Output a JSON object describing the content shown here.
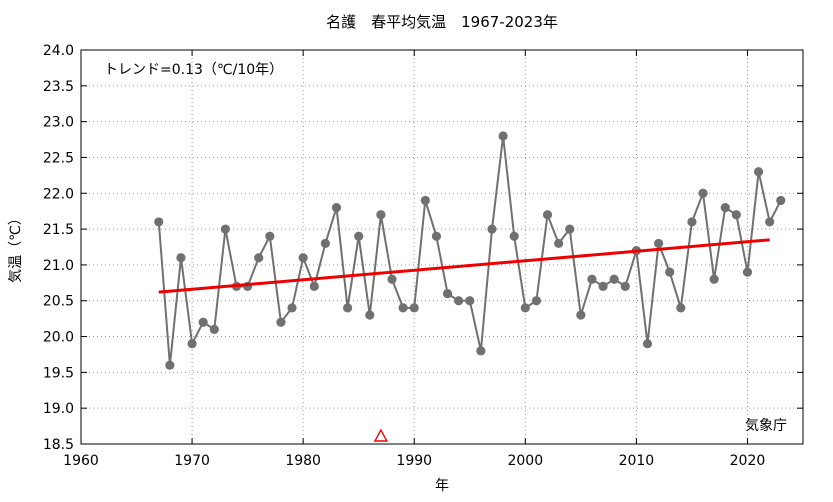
{
  "chart_data": {
    "type": "line",
    "title": "名護　春平均気温　1967-2023年",
    "xlabel": "年",
    "ylabel": "気温（℃）",
    "annotation_trend": "トレンド=0.13（℃/10年）",
    "source": "気象庁",
    "xlim": [
      1960,
      2025
    ],
    "ylim": [
      18.5,
      24.0
    ],
    "x_ticks": [
      1960,
      1970,
      1980,
      1990,
      2000,
      2010,
      2020
    ],
    "y_ticks": [
      18.5,
      19.0,
      19.5,
      20.0,
      20.5,
      21.0,
      21.5,
      22.0,
      22.5,
      23.0,
      23.5,
      24.0
    ],
    "grid": true,
    "x": [
      1967,
      1968,
      1969,
      1970,
      1971,
      1972,
      1973,
      1974,
      1975,
      1976,
      1977,
      1978,
      1979,
      1980,
      1981,
      1982,
      1983,
      1984,
      1985,
      1986,
      1987,
      1988,
      1989,
      1990,
      1991,
      1992,
      1993,
      1994,
      1995,
      1996,
      1997,
      1998,
      1999,
      2000,
      2001,
      2002,
      2003,
      2004,
      2005,
      2006,
      2007,
      2008,
      2009,
      2010,
      2011,
      2012,
      2013,
      2014,
      2015,
      2016,
      2017,
      2018,
      2019,
      2020,
      2021,
      2022,
      2023
    ],
    "series": [
      {
        "color": "#707070",
        "values": [
          21.6,
          19.6,
          21.1,
          19.9,
          20.2,
          20.1,
          21.5,
          20.7,
          20.7,
          21.1,
          21.4,
          20.2,
          20.4,
          21.1,
          20.7,
          21.3,
          21.8,
          20.4,
          21.4,
          20.3,
          21.7,
          20.8,
          20.4,
          20.4,
          21.9,
          21.4,
          20.6,
          20.5,
          20.5,
          19.8,
          21.5,
          22.8,
          21.4,
          20.4,
          20.5,
          21.7,
          21.3,
          21.5,
          20.3,
          20.8,
          20.7,
          20.8,
          20.7,
          21.2,
          19.9,
          21.3,
          20.9,
          20.4,
          21.6,
          22.0,
          20.8,
          21.8,
          21.7,
          20.9,
          22.3,
          21.6,
          21.9
        ]
      }
    ],
    "trend_line": {
      "color": "#ee0000",
      "x": [
        1967,
        2022
      ],
      "y": [
        20.62,
        21.35
      ]
    },
    "marker": {
      "x": 1987,
      "shape": "triangle",
      "color": "#ee0000"
    }
  }
}
